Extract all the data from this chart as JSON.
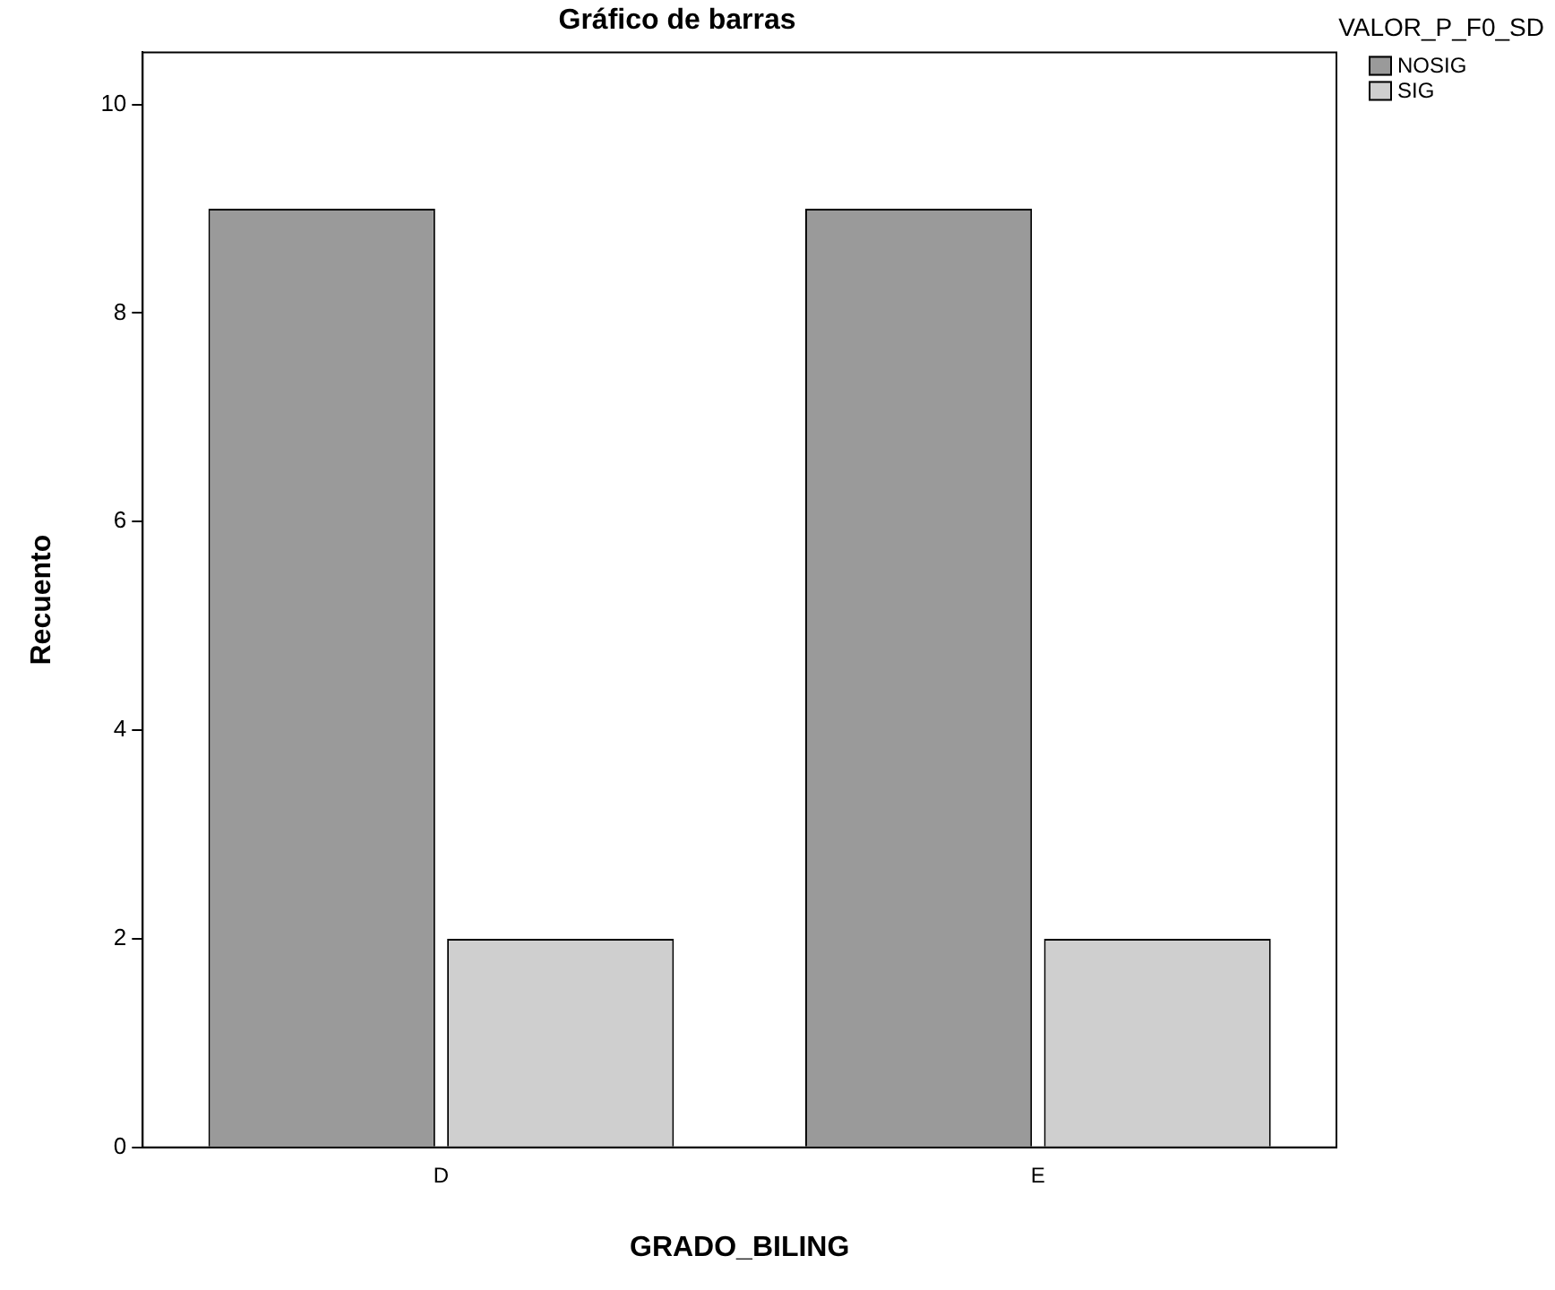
{
  "chart_data": {
    "type": "bar",
    "title": "Gráfico de barras",
    "xlabel": "GRADO_BILING",
    "ylabel": "Recuento",
    "legend_title": "VALOR_P_F0_SD",
    "categories": [
      "D",
      "E"
    ],
    "series": [
      {
        "name": "NOSIG",
        "color": "#9a9a9a",
        "values": [
          9,
          9
        ]
      },
      {
        "name": "SIG",
        "color": "#cfcfcf",
        "values": [
          2,
          2
        ]
      }
    ],
    "ylim": [
      0,
      10.5
    ],
    "yticks": [
      0,
      2,
      4,
      6,
      8,
      10
    ],
    "grid": false,
    "legend": "top right"
  }
}
